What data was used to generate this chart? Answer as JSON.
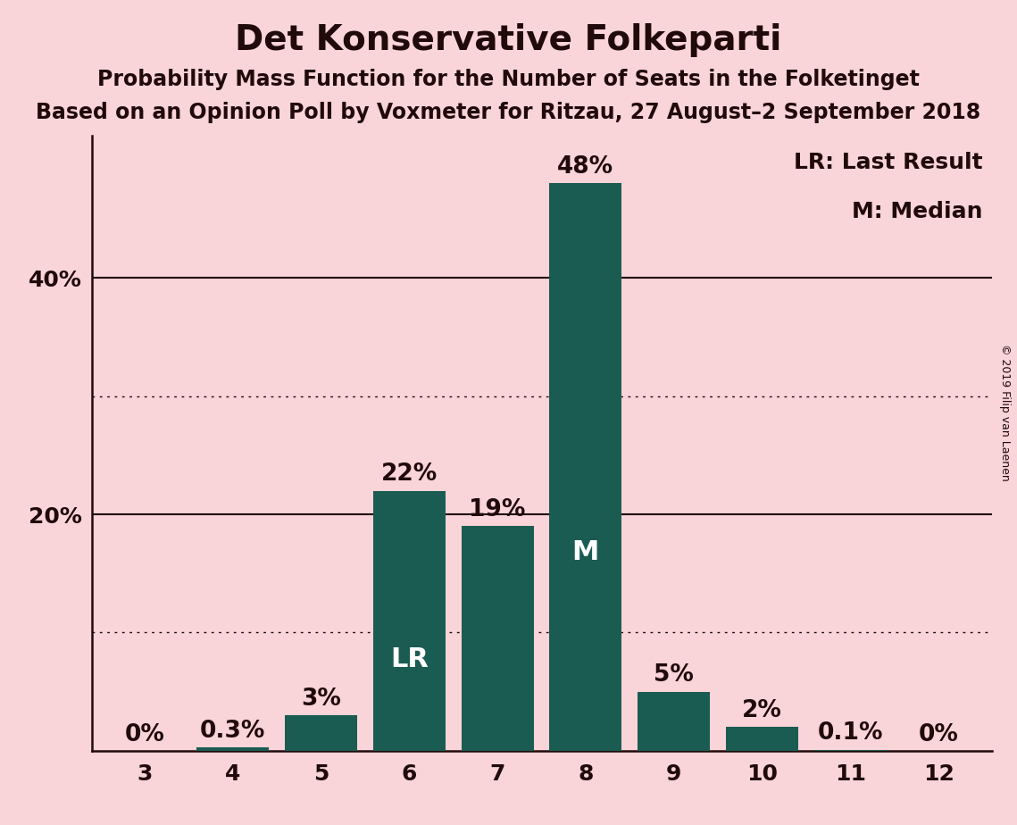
{
  "title": "Det Konservative Folkeparti",
  "subtitle1": "Probability Mass Function for the Number of Seats in the Folketinget",
  "subtitle2": "Based on an Opinion Poll by Voxmeter for Ritzau, 27 August–2 September 2018",
  "copyright": "© 2019 Filip van Laenen",
  "categories": [
    3,
    4,
    5,
    6,
    7,
    8,
    9,
    10,
    11,
    12
  ],
  "values": [
    0.0,
    0.3,
    3.0,
    22.0,
    19.0,
    48.0,
    5.0,
    2.0,
    0.1,
    0.0
  ],
  "bar_color": "#1b5c52",
  "background_color": "#f9d4d8",
  "text_color": "#200a0a",
  "bar_label_white": "#ffffff",
  "bar_label_dark": "#200a0a",
  "LR_bar": 6,
  "M_bar": 8,
  "legend_LR": "LR: Last Result",
  "legend_M": "M: Median",
  "solid_yticks": [
    20,
    40
  ],
  "dotted_yticks": [
    10,
    30
  ],
  "ylim": [
    0,
    52
  ],
  "title_fontsize": 28,
  "subtitle_fontsize": 17,
  "tick_fontsize": 18,
  "bar_annotation_fontsize": 19,
  "bar_inner_fontsize": 22,
  "legend_fontsize": 18,
  "copyright_fontsize": 9
}
